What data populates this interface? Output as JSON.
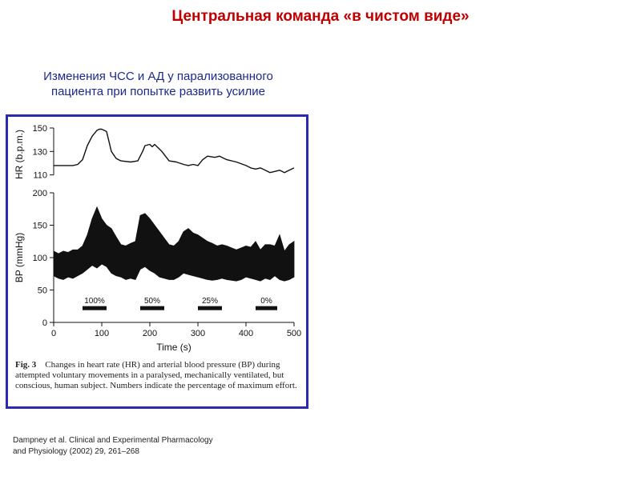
{
  "slide": {
    "title": "Центральная команда «в чистом виде»",
    "subtitle_line1": "Изменения ЧСС и АД у парализованного",
    "subtitle_line2": "пациента при попытке развить усилие"
  },
  "figure": {
    "caption_label": "Fig. 3",
    "caption_text": "Changes in heart rate (HR) and arterial blood pressure (BP) during attempted voluntary movements in a paralysed, mechanically ventilated, but conscious, human subject. Numbers indicate the percentage of maximum effort."
  },
  "citation": {
    "line1": "Dampney et al. Clinical and Experimental Pharmacology",
    "line2": "and Physiology (2002) 29, 261–268"
  },
  "chart_data": [
    {
      "type": "line",
      "ylabel": "HR (b.p.m.)",
      "ylim": [
        105,
        150
      ],
      "yticks": [
        110,
        130,
        150
      ],
      "xlim": [
        0,
        500
      ],
      "grid": false,
      "series": [
        {
          "x": [
            0,
            20,
            40,
            50,
            60,
            70,
            80,
            90,
            95,
            100,
            110,
            120,
            130,
            140,
            160,
            175,
            185,
            190,
            200,
            205,
            210,
            225,
            240,
            255,
            270,
            280,
            290,
            300,
            310,
            320,
            335,
            345,
            360,
            380,
            400,
            410,
            420,
            430,
            440,
            450,
            460,
            470,
            480,
            490,
            500
          ],
          "values": [
            118,
            118,
            118,
            119,
            123,
            135,
            143,
            148,
            149,
            149,
            147,
            130,
            124,
            122,
            121,
            122,
            130,
            135,
            136,
            134,
            136,
            130,
            122,
            121,
            119,
            118,
            119,
            118,
            123,
            126,
            125,
            126,
            123,
            121,
            118,
            116,
            115,
            116,
            114,
            112,
            113,
            114,
            112,
            114,
            116
          ]
        }
      ]
    },
    {
      "type": "area",
      "ylabel": "BP (mmHg)",
      "xlabel": "Time (s)",
      "ylim": [
        0,
        200
      ],
      "yticks": [
        0,
        50,
        100,
        150,
        200
      ],
      "xlim": [
        0,
        500
      ],
      "xticks": [
        0,
        100,
        200,
        300,
        400,
        500
      ],
      "grid": false,
      "series": [
        {
          "name": "",
          "x": [
            0,
            10,
            20,
            30,
            40,
            50,
            60,
            70,
            80,
            90,
            100,
            110,
            120,
            130,
            140,
            150,
            160,
            170,
            180,
            190,
            200,
            210,
            220,
            230,
            240,
            250,
            260,
            270,
            280,
            290,
            300,
            310,
            320,
            330,
            340,
            350,
            360,
            370,
            380,
            390,
            400,
            410,
            420,
            430,
            440,
            450,
            460,
            470,
            480,
            490,
            500
          ],
          "upper": [
            110,
            106,
            110,
            108,
            112,
            112,
            118,
            135,
            160,
            178,
            160,
            150,
            145,
            132,
            120,
            118,
            122,
            125,
            165,
            168,
            160,
            150,
            140,
            130,
            120,
            118,
            125,
            140,
            145,
            138,
            135,
            130,
            125,
            122,
            118,
            120,
            118,
            115,
            112,
            115,
            118,
            116,
            125,
            112,
            120,
            120,
            118,
            135,
            110,
            120,
            125
          ],
          "lower": [
            72,
            68,
            66,
            70,
            68,
            72,
            76,
            82,
            88,
            84,
            90,
            86,
            76,
            72,
            70,
            66,
            68,
            66,
            82,
            86,
            80,
            76,
            70,
            68,
            66,
            66,
            70,
            76,
            74,
            72,
            70,
            68,
            66,
            65,
            66,
            68,
            66,
            65,
            64,
            66,
            70,
            68,
            66,
            64,
            68,
            66,
            72,
            66,
            64,
            66,
            70
          ]
        }
      ],
      "effort_bars": [
        {
          "label": "100%",
          "start": 60,
          "end": 110
        },
        {
          "label": "50%",
          "start": 180,
          "end": 230
        },
        {
          "label": "25%",
          "start": 300,
          "end": 350
        },
        {
          "label": "0%",
          "start": 420,
          "end": 465
        }
      ],
      "effort_bar_level": 22
    }
  ],
  "colors": {
    "title": "#c00000",
    "subtitle": "#1a2a8c",
    "border": "#2a2ab0",
    "ink": "#111111"
  }
}
